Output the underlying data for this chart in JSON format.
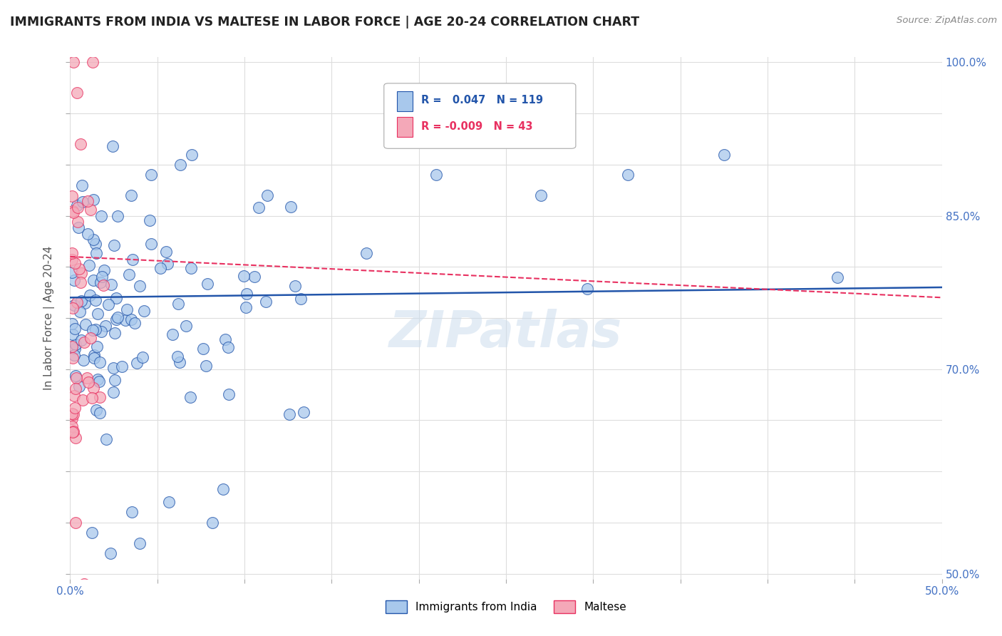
{
  "title": "IMMIGRANTS FROM INDIA VS MALTESE IN LABOR FORCE | AGE 20-24 CORRELATION CHART",
  "source": "Source: ZipAtlas.com",
  "ylabel": "In Labor Force | Age 20-24",
  "xlim": [
    0.0,
    0.5
  ],
  "ylim": [
    0.495,
    1.005
  ],
  "india_R": 0.047,
  "india_N": 119,
  "maltese_R": -0.009,
  "maltese_N": 43,
  "india_color": "#A8C8EC",
  "maltese_color": "#F4A8B8",
  "india_trend_color": "#2255AA",
  "maltese_trend_color": "#E83060",
  "background_color": "#FFFFFF",
  "india_trend_y0": 0.77,
  "india_trend_y1": 0.78,
  "maltese_trend_y0": 0.81,
  "maltese_trend_y1": 0.77
}
